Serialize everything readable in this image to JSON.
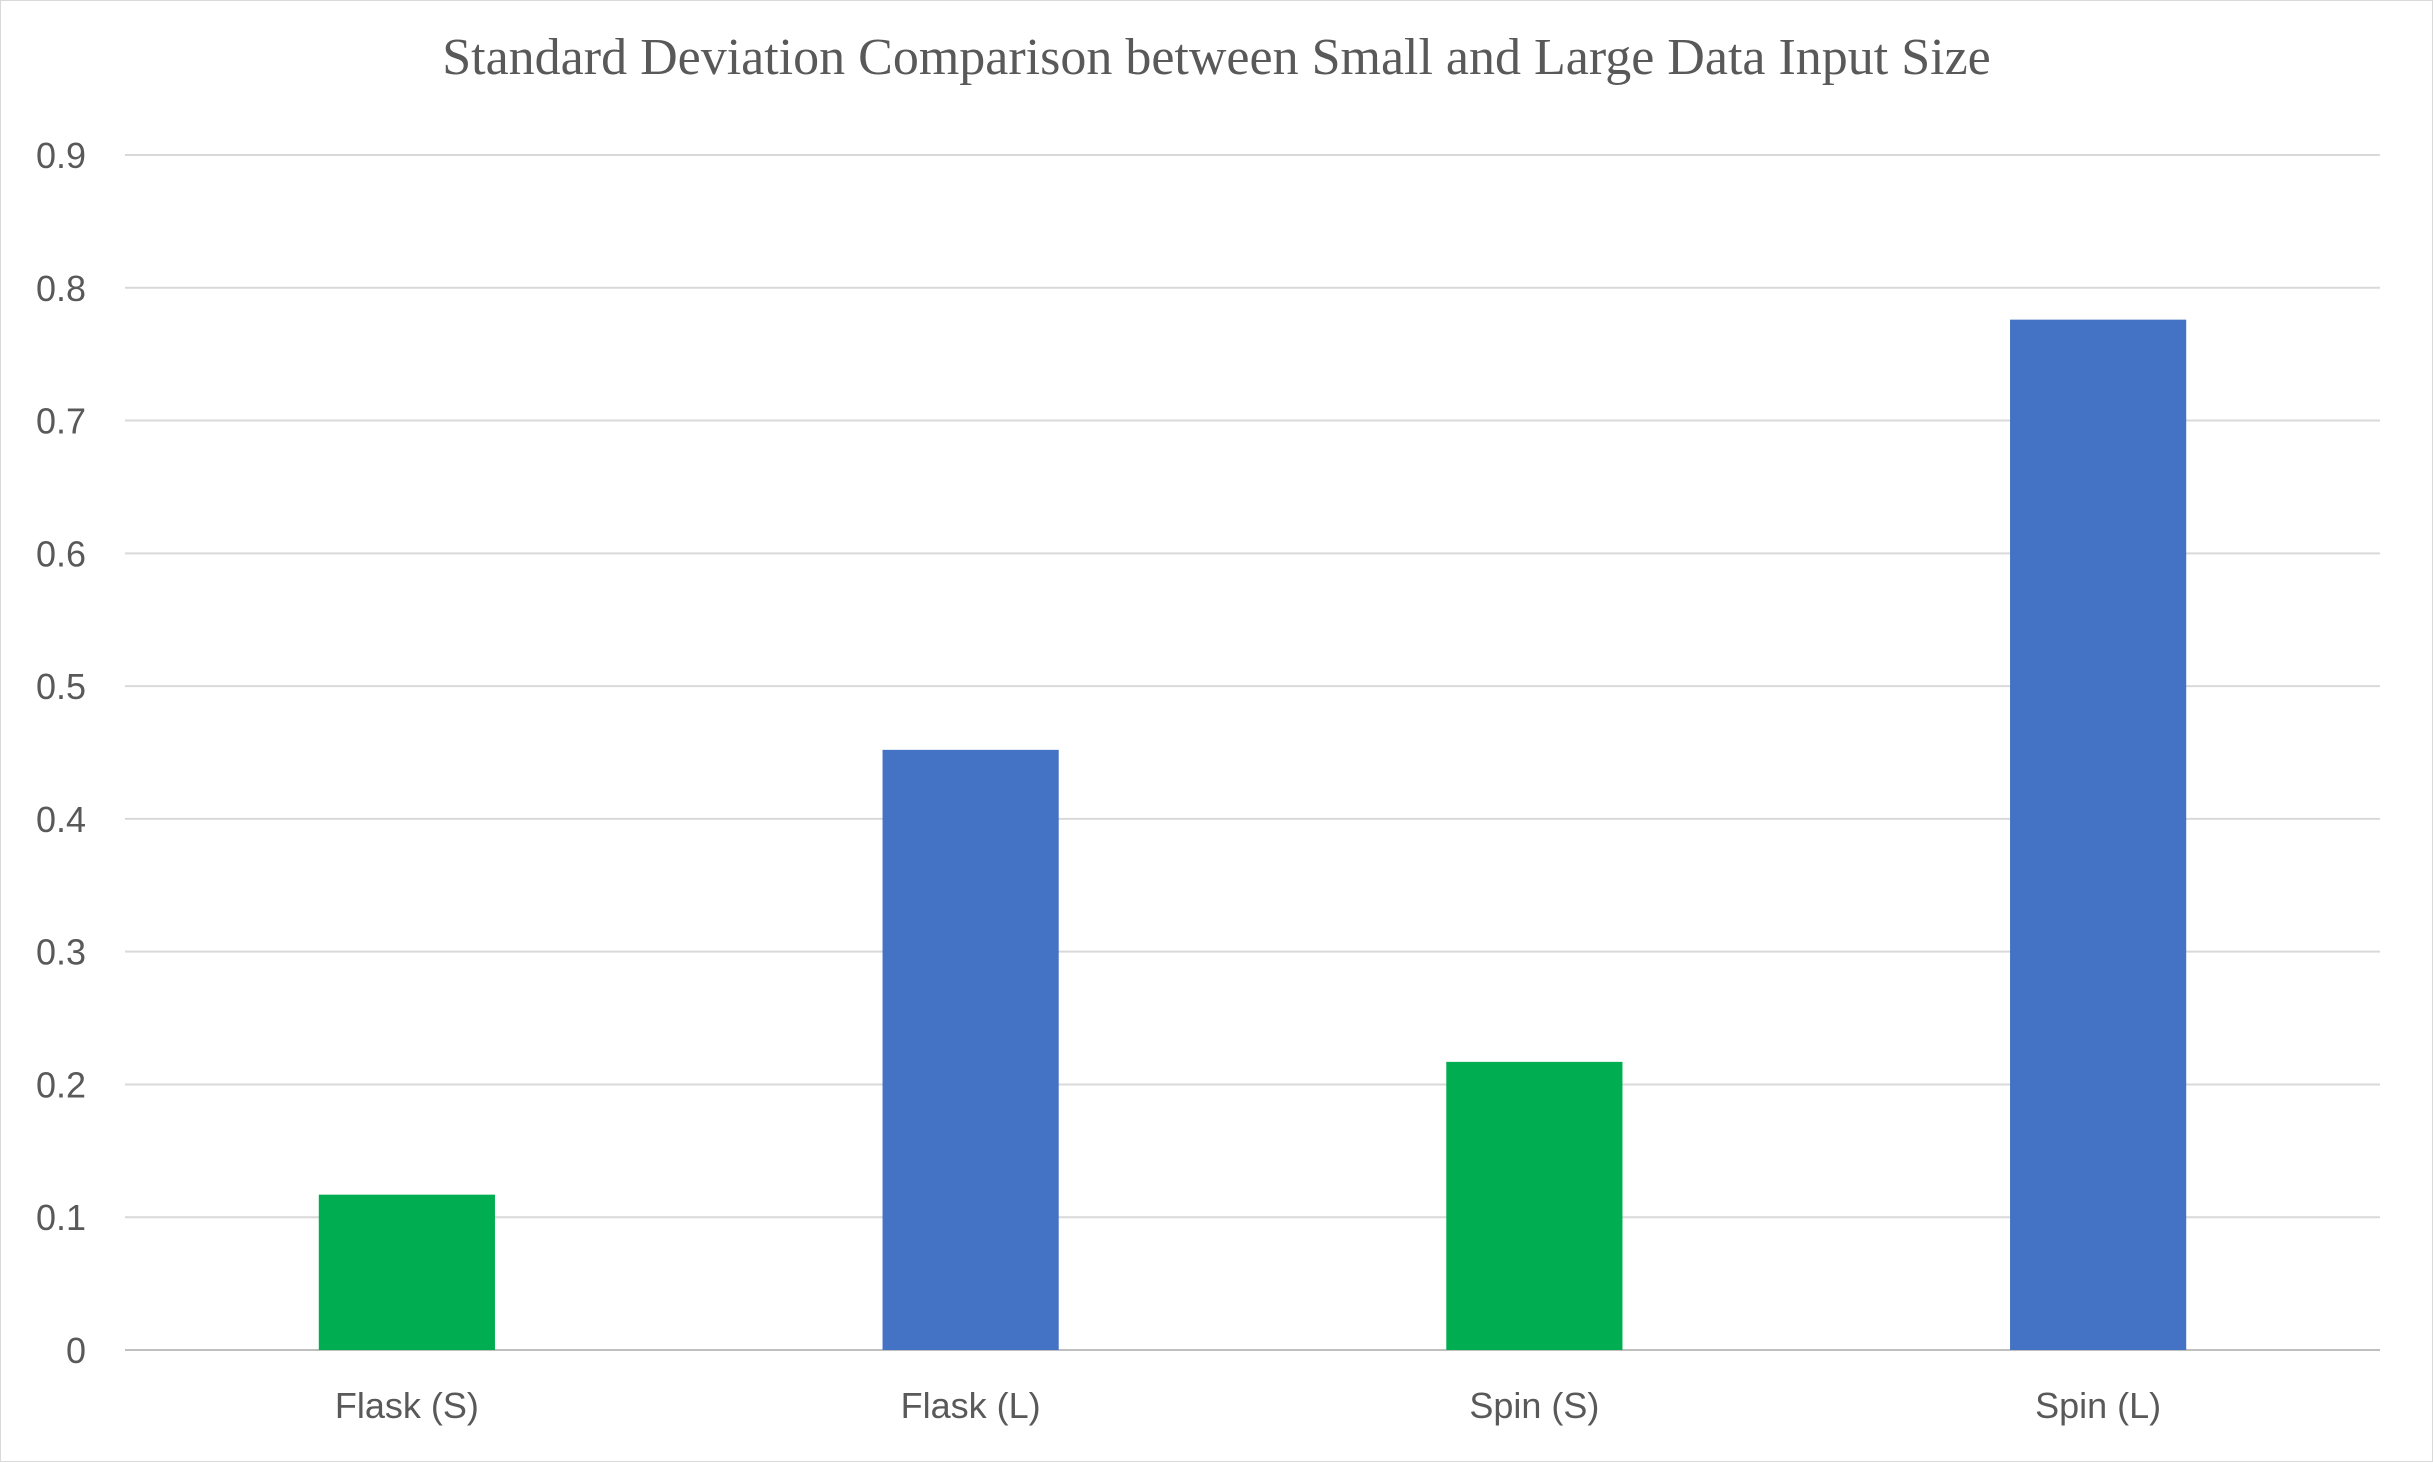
{
  "chart_data": {
    "type": "bar",
    "title": "Standard Deviation Comparison between Small and Large Data Input Size",
    "xlabel": "",
    "ylabel": "",
    "categories": [
      "Flask (S)",
      "Flask (L)",
      "Spin (S)",
      "Spin (L)"
    ],
    "values": [
      0.117,
      0.452,
      0.217,
      0.776
    ],
    "bar_colors": [
      "#00AD50",
      "#4472C4",
      "#00AD50",
      "#4472C4"
    ],
    "ylim": [
      0,
      0.9
    ],
    "yticks": [
      0,
      0.1,
      0.2,
      0.3,
      0.4,
      0.5,
      0.6,
      0.7,
      0.8,
      0.9
    ],
    "ytick_labels": [
      "0",
      "0.1",
      "0.2",
      "0.3",
      "0.4",
      "0.5",
      "0.6",
      "0.7",
      "0.8",
      "0.9"
    ],
    "grid": true,
    "legend": "none"
  }
}
